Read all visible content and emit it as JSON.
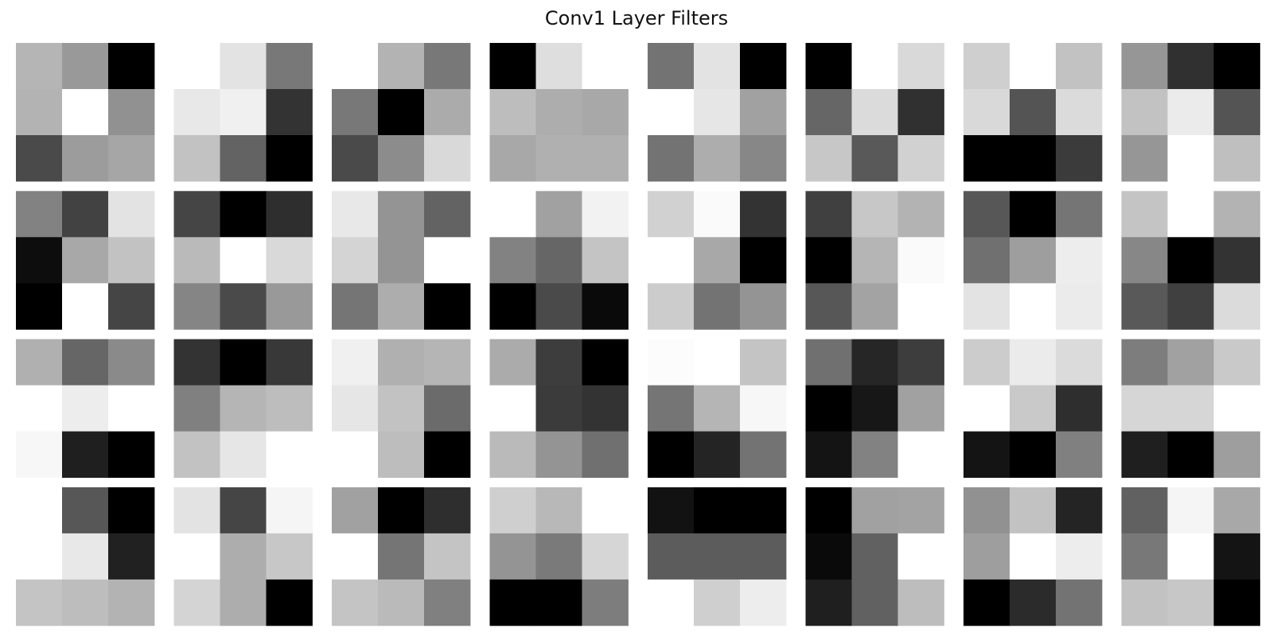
{
  "chart_data": {
    "type": "heatmap",
    "title": "Conv1 Layer Filters",
    "grid_rows": 4,
    "grid_cols": 8,
    "filter_size": 3,
    "colormap": "gray",
    "value_range": [
      0,
      1
    ],
    "axes_visible": false,
    "filters": [
      [
        [
          0.71,
          0.6,
          0.0
        ],
        [
          0.7,
          1.0,
          0.57
        ],
        [
          0.29,
          0.61,
          0.65
        ]
      ],
      [
        [
          1.0,
          0.89,
          0.47
        ],
        [
          0.91,
          0.94,
          0.2
        ],
        [
          0.76,
          0.39,
          0.0
        ]
      ],
      [
        [
          1.0,
          0.7,
          0.47
        ],
        [
          0.47,
          0.0,
          0.67
        ],
        [
          0.29,
          0.55,
          0.85
        ]
      ],
      [
        [
          0.0,
          0.87,
          1.0
        ],
        [
          0.74,
          0.68,
          0.66
        ],
        [
          0.66,
          0.69,
          0.69
        ]
      ],
      [
        [
          0.45,
          0.89,
          0.0
        ],
        [
          1.0,
          0.9,
          0.63
        ],
        [
          0.45,
          0.68,
          0.53
        ]
      ],
      [
        [
          0.0,
          1.0,
          0.85
        ],
        [
          0.4,
          0.86,
          0.19
        ],
        [
          0.78,
          0.35,
          0.82
        ]
      ],
      [
        [
          0.81,
          1.0,
          0.76
        ],
        [
          0.85,
          0.33,
          0.86
        ],
        [
          0.0,
          0.0,
          0.23
        ]
      ],
      [
        [
          0.59,
          0.19,
          0.0
        ],
        [
          0.76,
          0.92,
          0.33
        ],
        [
          0.59,
          1.0,
          0.75
        ]
      ],
      [
        [
          0.51,
          0.26,
          0.89
        ],
        [
          0.05,
          0.66,
          0.76
        ],
        [
          0.0,
          1.0,
          0.27
        ]
      ],
      [
        [
          0.27,
          0.0,
          0.18
        ],
        [
          0.73,
          1.0,
          0.85
        ],
        [
          0.52,
          0.29,
          0.6
        ]
      ],
      [
        [
          0.91,
          0.58,
          0.39
        ],
        [
          0.83,
          0.58,
          1.0
        ],
        [
          0.46,
          0.68,
          0.0
        ]
      ],
      [
        [
          1.0,
          0.63,
          0.95
        ],
        [
          0.51,
          0.4,
          0.77
        ],
        [
          0.0,
          0.29,
          0.04
        ]
      ],
      [
        [
          0.82,
          0.98,
          0.2
        ],
        [
          1.0,
          0.66,
          0.0
        ],
        [
          0.8,
          0.45,
          0.58
        ]
      ],
      [
        [
          0.25,
          0.78,
          0.7
        ],
        [
          0.0,
          0.71,
          0.98
        ],
        [
          0.34,
          0.64,
          1.0
        ]
      ],
      [
        [
          0.34,
          0.0,
          0.46
        ],
        [
          0.44,
          0.62,
          0.93
        ],
        [
          0.89,
          1.0,
          0.92
        ]
      ],
      [
        [
          0.77,
          1.0,
          0.7
        ],
        [
          0.53,
          0.0,
          0.2
        ],
        [
          0.35,
          0.25,
          0.86
        ]
      ],
      [
        [
          0.69,
          0.4,
          0.54
        ],
        [
          1.0,
          0.93,
          1.0
        ],
        [
          0.97,
          0.12,
          0.0
        ]
      ],
      [
        [
          0.2,
          0.0,
          0.22
        ],
        [
          0.5,
          0.71,
          0.74
        ],
        [
          0.76,
          0.9,
          1.0
        ]
      ],
      [
        [
          0.94,
          0.69,
          0.71
        ],
        [
          0.9,
          0.76,
          0.42
        ],
        [
          1.0,
          0.74,
          0.0
        ]
      ],
      [
        [
          0.67,
          0.24,
          0.0
        ],
        [
          1.0,
          0.23,
          0.2
        ],
        [
          0.73,
          0.58,
          0.44
        ]
      ],
      [
        [
          0.99,
          1.0,
          0.77
        ],
        [
          0.46,
          0.71,
          0.97
        ],
        [
          0.0,
          0.14,
          0.45
        ]
      ],
      [
        [
          0.44,
          0.15,
          0.24
        ],
        [
          0.0,
          0.09,
          0.63
        ],
        [
          0.08,
          0.51,
          1.0
        ]
      ],
      [
        [
          0.8,
          0.92,
          0.86
        ],
        [
          1.0,
          0.79,
          0.18
        ],
        [
          0.08,
          0.0,
          0.5
        ]
      ],
      [
        [
          0.49,
          0.63,
          0.79
        ],
        [
          0.84,
          0.84,
          1.0
        ],
        [
          0.12,
          0.0,
          0.62
        ]
      ],
      [
        [
          1.0,
          0.34,
          0.0
        ],
        [
          1.0,
          0.91,
          0.13
        ],
        [
          0.77,
          0.74,
          0.7
        ]
      ],
      [
        [
          0.89,
          0.27,
          0.96
        ],
        [
          1.0,
          0.68,
          0.78
        ],
        [
          0.83,
          0.68,
          0.0
        ]
      ],
      [
        [
          0.63,
          0.0,
          0.18
        ],
        [
          1.0,
          0.46,
          0.77
        ],
        [
          0.77,
          0.73,
          0.5
        ]
      ],
      [
        [
          0.81,
          0.72,
          1.0
        ],
        [
          0.58,
          0.48,
          0.84
        ],
        [
          0.0,
          0.0,
          0.49
        ]
      ],
      [
        [
          0.07,
          0.0,
          0.0
        ],
        [
          0.36,
          0.36,
          0.36
        ],
        [
          1.0,
          0.81,
          0.93
        ]
      ],
      [
        [
          0.0,
          0.63,
          0.64
        ],
        [
          0.04,
          0.38,
          1.0
        ],
        [
          0.12,
          0.38,
          0.74
        ]
      ],
      [
        [
          0.57,
          0.76,
          0.14
        ],
        [
          0.62,
          1.0,
          0.93
        ],
        [
          0.0,
          0.17,
          0.45
        ]
      ],
      [
        [
          0.38,
          0.96,
          0.66
        ],
        [
          0.47,
          1.0,
          0.08
        ],
        [
          0.76,
          0.78,
          0.0
        ]
      ]
    ]
  }
}
